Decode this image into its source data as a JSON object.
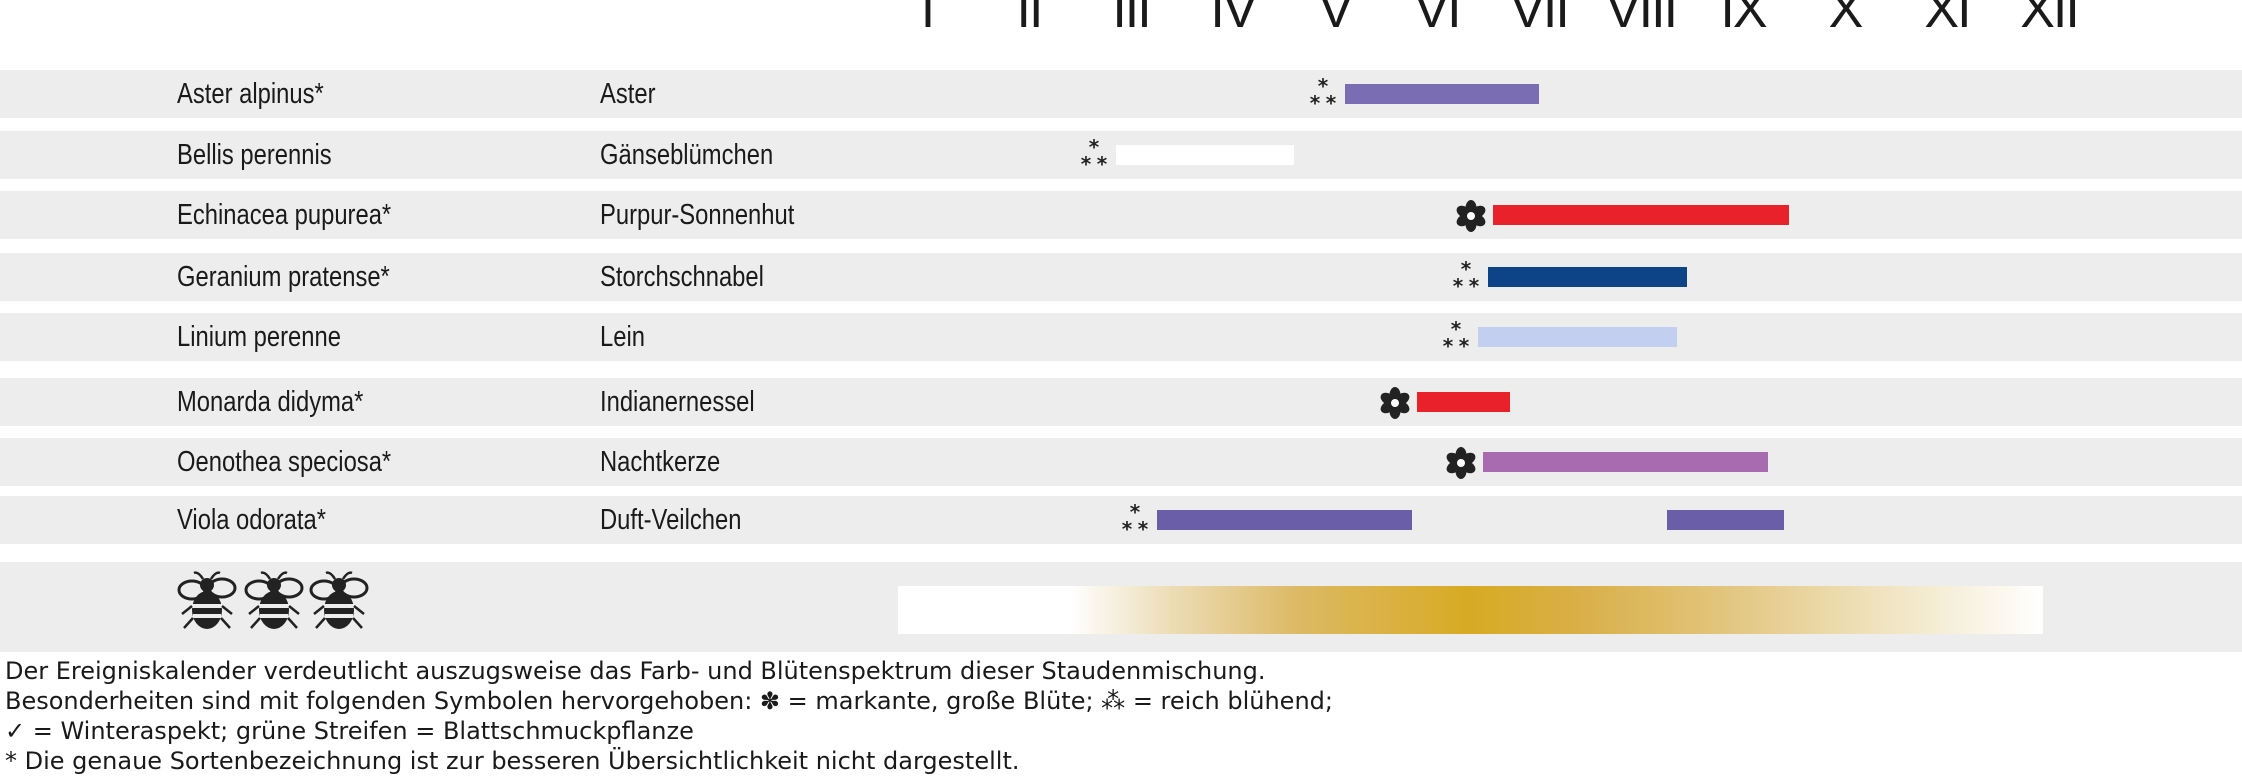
{
  "chart_data": {
    "type": "gantt",
    "months": [
      "I",
      "II",
      "III",
      "IV",
      "V",
      "VI",
      "VII",
      "VIII",
      "IX",
      "X",
      "XI",
      "XII"
    ],
    "rows": [
      {
        "scientific": "Aster alpinus*",
        "common": "Aster",
        "symbol": "reich blühend",
        "color": "#7b6db3",
        "periods": [
          [
            5.1,
            7.0
          ]
        ]
      },
      {
        "scientific": "Bellis perennis",
        "common": "Gänseblümchen",
        "symbol": "reich blühend",
        "color": "#ffffff",
        "periods": [
          [
            2.85,
            4.6
          ]
        ]
      },
      {
        "scientific": "Echinacea pupurea*",
        "common": "Purpur-Sonnenhut",
        "symbol": "markante, große Blüte",
        "color": "#e8212a",
        "periods": [
          [
            6.55,
            9.45
          ]
        ]
      },
      {
        "scientific": "Geranium pratense*",
        "common": "Storchschnabel",
        "symbol": "reich blühend",
        "color": "#0c4487",
        "periods": [
          [
            6.5,
            8.45
          ]
        ]
      },
      {
        "scientific": "Linium perenne",
        "common": "Lein",
        "symbol": "reich blühend",
        "color": "#c2cff0",
        "periods": [
          [
            6.4,
            8.35
          ]
        ]
      },
      {
        "scientific": "Monarda didyma*",
        "common": "Indianernessel",
        "symbol": "markante, große Blüte",
        "color": "#e8212a",
        "periods": [
          [
            5.8,
            6.72
          ]
        ]
      },
      {
        "scientific": "Oenothea speciosa*",
        "common": "Nachtkerze",
        "symbol": "markante, große Blüte",
        "color": "#a86bb0",
        "periods": [
          [
            6.45,
            9.25
          ]
        ]
      },
      {
        "scientific": "Viola odorata*",
        "common": "Duft-Veilchen",
        "symbol": "reich blühend",
        "color": "#6a5ea9",
        "periods": [
          [
            3.25,
            5.75
          ],
          [
            8.25,
            9.4
          ]
        ]
      }
    ],
    "bee_row": {
      "icons": 3,
      "gradient_color": "#d8aa22"
    }
  },
  "legend": {
    "line1": "Der Ereigniskalender verdeutlicht auszugsweise das Farb- und Blütenspektrum dieser Staudenmischung.",
    "line2": "Besonderheiten sind mit folgenden Symbolen hervorgehoben: ✽ = markante, große Blüte; ⁂ = reich blühend;",
    "line3": "✓ = Winteraspekt; grüne Streifen = Blattschmuckpflanze",
    "line4": "* Die genaue Sortenbezeichnung ist zur besseren Übersichtlichkeit nicht dargestellt."
  }
}
